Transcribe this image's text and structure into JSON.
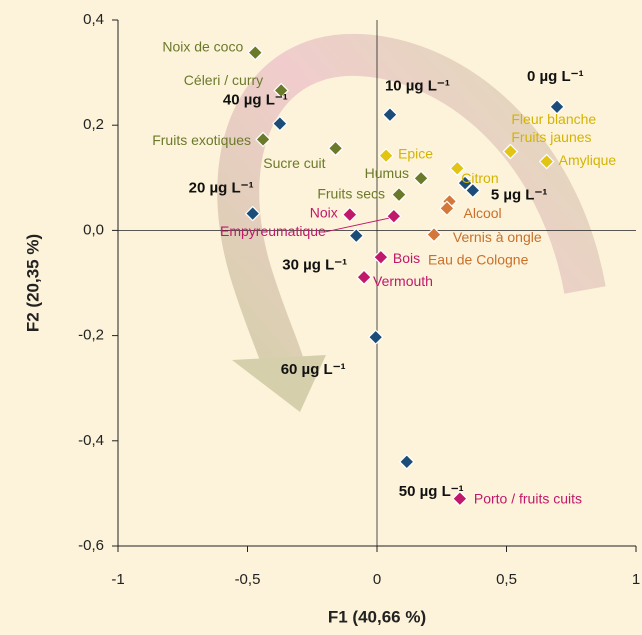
{
  "chart_data": {
    "type": "scatter",
    "x_label": "F1 (40,66 %)",
    "y_label": "F2 (20,35 %)",
    "xlim": [
      -1,
      1
    ],
    "ylim": [
      -0.6,
      0.4
    ],
    "xticks": [
      -1,
      {
        "value": -0.5,
        "label": "-0,5"
      },
      0,
      {
        "value": 0.5,
        "label": "0,5"
      },
      1
    ],
    "yticks": [
      {
        "value": -0.6,
        "label": "-0,6"
      },
      {
        "value": -0.4,
        "label": "-0,4"
      },
      {
        "value": -0.2,
        "label": "-0,2"
      },
      {
        "value": 0,
        "label": "0,0"
      },
      {
        "value": 0.2,
        "label": "0,2"
      },
      {
        "value": 0.4,
        "label": "0,4"
      }
    ],
    "series": [
      {
        "color": "#1b4d78",
        "label_color": "#111111",
        "x": [
          0.695,
          0.05,
          -0.375,
          -0.48,
          -0.08,
          -0.005,
          0.115,
          0.37,
          0.34
        ],
        "values": [
          0.235,
          0.22,
          0.203,
          0.032,
          -0.01,
          -0.203,
          -0.44,
          0.076,
          0.09
        ],
        "labels": [
          "0 µg L⁻¹",
          "10 µg L⁻¹",
          "40 µg L⁻¹",
          "20 µg L⁻¹",
          "30 µg L⁻¹",
          "60 µg L⁻¹",
          "50 µg L⁻¹",
          "5 µg L⁻¹",
          null
        ]
      },
      {
        "color": "#6b7a2a",
        "label_color": "#6b7a2a",
        "x": [
          -0.47,
          -0.37,
          -0.44,
          -0.16,
          0.17,
          0.085
        ],
        "values": [
          0.338,
          0.266,
          0.173,
          0.156,
          0.099,
          0.068
        ],
        "labels": [
          "Noix de coco",
          "Céleri / curry",
          "Fruits exotiques",
          "Sucre cuit",
          "Humus",
          "Fruits secs"
        ]
      },
      {
        "color": "#e2c414",
        "label_color": "#d4b400",
        "x": [
          0.515,
          0.515,
          0.655,
          0.035,
          0.31
        ],
        "values": [
          0.15,
          0.15,
          0.131,
          0.142,
          0.118
        ],
        "labels": [
          "Fleur blanche",
          "Fruits jaunes",
          "Amylique",
          "Epice",
          "Citron"
        ]
      },
      {
        "color": "#d4773a",
        "label_color": "#c8702a",
        "x": [
          0.28,
          0.27,
          0.22
        ],
        "values": [
          0.055,
          0.042,
          -0.008
        ],
        "labels": [
          "Alcool",
          "Vernis à ongle",
          "Eau de Cologne"
        ]
      },
      {
        "color": "#c0186a",
        "label_color": "#c0186a",
        "x": [
          -0.105,
          0.065,
          0.015,
          -0.05,
          0.32
        ],
        "values": [
          0.03,
          0.027,
          -0.051,
          -0.089,
          -0.51
        ],
        "labels": [
          "Noix",
          "Empyreumatique",
          "Bois",
          "Vermouth",
          "Porto / fruits cuits"
        ]
      }
    ]
  }
}
